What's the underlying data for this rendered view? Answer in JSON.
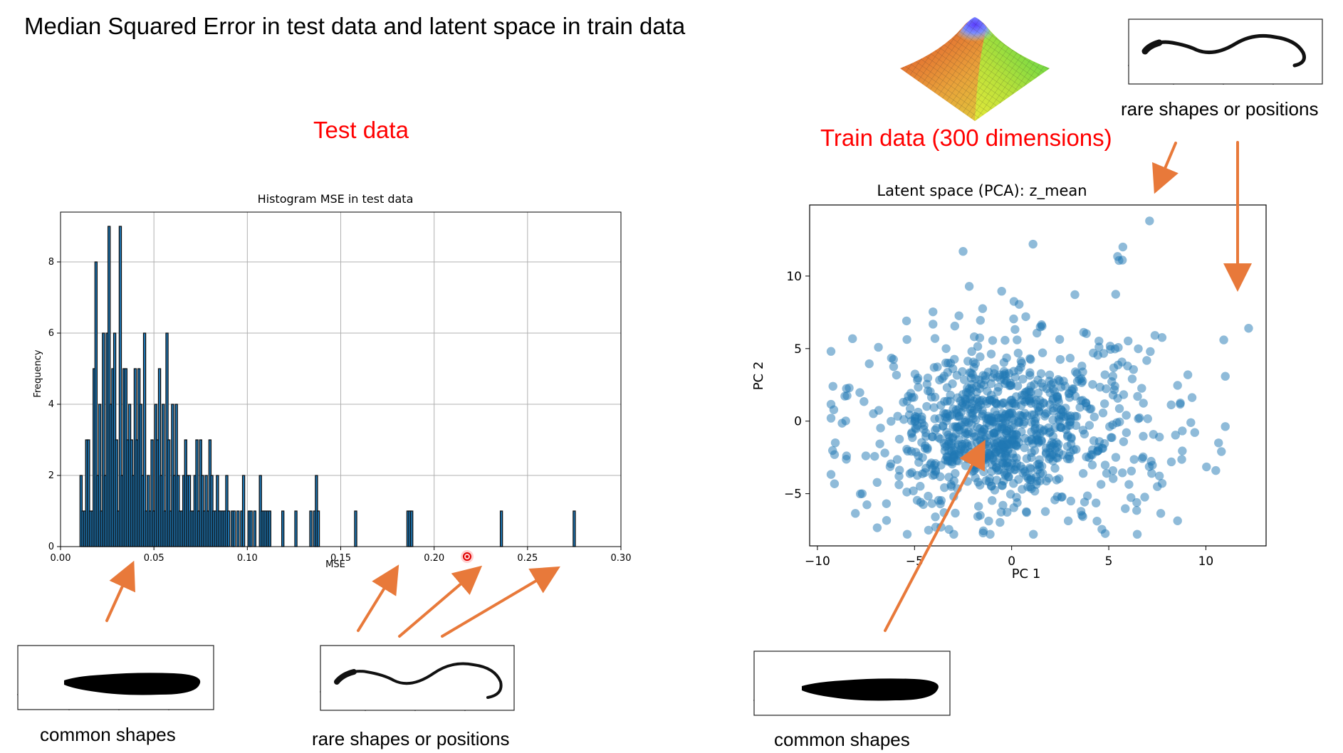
{
  "slide": {
    "title": "Median Squared Error in test data and latent space in train data",
    "test_label": "Test data",
    "train_label": "Train data (300 dimensions)",
    "rare_caption_top": "rare shapes or positions",
    "common_caption_left": "common shapes",
    "rare_caption_bottom": "rare shapes or positions",
    "common_caption_right": "common shapes"
  },
  "colors": {
    "accent_red": "#ff0000",
    "arrow_orange": "#e8793a",
    "bar_fill": "#1f77b4",
    "bar_edge": "#0b0b0b",
    "point_fill": "#1f77b4"
  },
  "chart_data": [
    {
      "type": "bar",
      "title": "Histogram MSE in test data",
      "xlabel": "MSE",
      "ylabel": "Frequency",
      "xlim": [
        0.0,
        0.3
      ],
      "ylim": [
        0,
        9.4
      ],
      "xticks": [
        "0.00",
        "0.05",
        "0.10",
        "0.15",
        "0.20",
        "0.25",
        "0.30"
      ],
      "yticks": [
        "0",
        "2",
        "4",
        "6",
        "8"
      ],
      "grid": true,
      "bin_width": 0.0012,
      "x": [
        0.011,
        0.012,
        0.013,
        0.014,
        0.015,
        0.016,
        0.017,
        0.018,
        0.019,
        0.02,
        0.021,
        0.022,
        0.023,
        0.024,
        0.025,
        0.026,
        0.027,
        0.028,
        0.029,
        0.03,
        0.031,
        0.032,
        0.033,
        0.034,
        0.035,
        0.036,
        0.037,
        0.038,
        0.039,
        0.04,
        0.041,
        0.042,
        0.043,
        0.044,
        0.045,
        0.046,
        0.047,
        0.048,
        0.049,
        0.05,
        0.051,
        0.052,
        0.053,
        0.054,
        0.055,
        0.056,
        0.057,
        0.058,
        0.059,
        0.06,
        0.061,
        0.062,
        0.063,
        0.064,
        0.065,
        0.066,
        0.067,
        0.068,
        0.069,
        0.07,
        0.071,
        0.072,
        0.073,
        0.074,
        0.075,
        0.076,
        0.077,
        0.078,
        0.079,
        0.08,
        0.081,
        0.082,
        0.083,
        0.084,
        0.085,
        0.086,
        0.087,
        0.088,
        0.089,
        0.09,
        0.092,
        0.093,
        0.095,
        0.097,
        0.098,
        0.101,
        0.102,
        0.104,
        0.107,
        0.108,
        0.109,
        0.11,
        0.111,
        0.112,
        0.119,
        0.126,
        0.134,
        0.136,
        0.137,
        0.138,
        0.158,
        0.186,
        0.187,
        0.188,
        0.236,
        0.275
      ],
      "y": [
        2,
        1,
        1,
        3,
        3,
        1,
        1,
        5,
        8,
        2,
        4,
        1,
        6,
        2,
        6,
        9,
        4,
        5,
        6,
        3,
        1,
        9,
        2,
        5,
        5,
        3,
        4,
        3,
        2,
        5,
        3,
        5,
        4,
        2,
        6,
        1,
        2,
        1,
        3,
        1,
        4,
        3,
        5,
        2,
        4,
        1,
        6,
        3,
        1,
        4,
        2,
        4,
        2,
        1,
        1,
        2,
        3,
        2,
        2,
        1,
        1,
        2,
        3,
        1,
        3,
        2,
        1,
        2,
        1,
        3,
        2,
        1,
        1,
        2,
        1,
        1,
        1,
        1,
        2,
        1,
        1,
        1,
        1,
        1,
        2,
        1,
        1,
        1,
        2,
        1,
        1,
        1,
        1,
        1,
        1,
        1,
        1,
        1,
        2,
        1,
        1,
        1,
        1,
        1,
        1,
        1
      ]
    },
    {
      "type": "scatter",
      "title": "Latent space (PCA): z_mean",
      "xlabel": "PC 1",
      "ylabel": "PC 2",
      "xlim": [
        -10.4,
        13.1
      ],
      "ylim": [
        -8.6,
        14.9
      ],
      "xticks": [
        "−10",
        "−5",
        "0",
        "5",
        "10"
      ],
      "yticks": [
        "−5",
        "0",
        "5",
        "10"
      ],
      "grid": false,
      "n_points": 1000,
      "visible_outliers": [
        {
          "x": 7.1,
          "y": 13.8
        },
        {
          "x": 12.2,
          "y": 6.4
        },
        {
          "x": -9.2,
          "y": 2.4
        },
        {
          "x": -8.5,
          "y": -2.4
        },
        {
          "x": 10.8,
          "y": -2.1
        },
        {
          "x": -2.5,
          "y": 11.7
        },
        {
          "x": 1.1,
          "y": 12.2
        },
        {
          "x": 5.7,
          "y": 11.1
        }
      ]
    }
  ]
}
